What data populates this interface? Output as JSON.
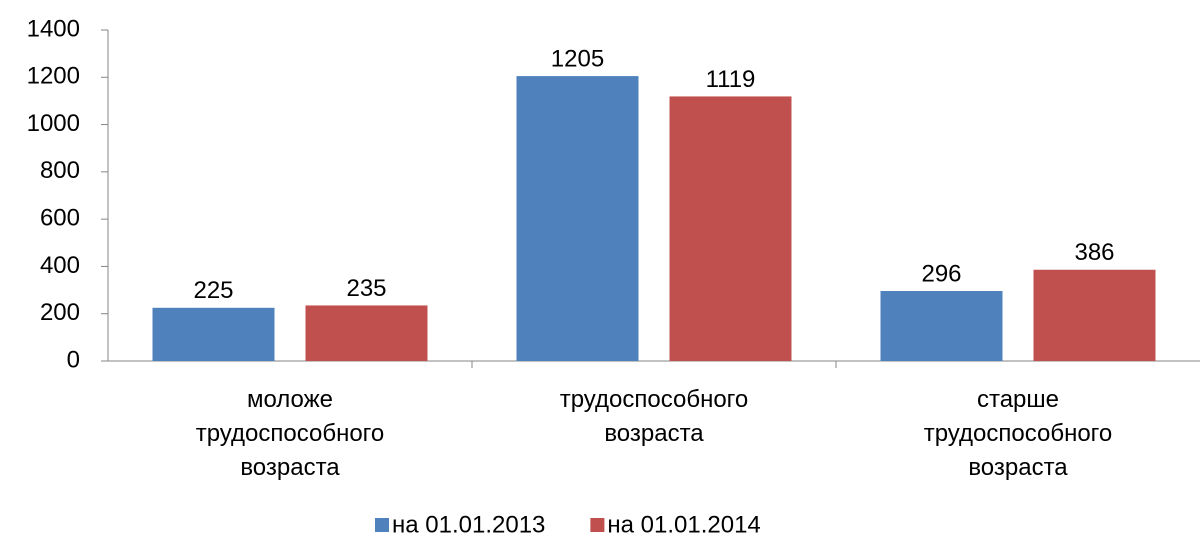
{
  "chart_data": {
    "type": "bar",
    "categories": [
      "моложе трудоспособного возраста",
      "трудоспособного возраста",
      "старше трудоспособного возраста"
    ],
    "series": [
      {
        "name": "на 01.01.2013",
        "color": "#4f81bd",
        "values": [
          225,
          1205,
          296
        ]
      },
      {
        "name": "на 01.01.2014",
        "color": "#c0504d",
        "values": [
          235,
          1119,
          386
        ]
      }
    ],
    "ylim": [
      0,
      1400
    ],
    "yticks": [
      0,
      200,
      400,
      600,
      800,
      1000,
      1200,
      1400
    ],
    "grid": false,
    "legend": "bottom"
  }
}
